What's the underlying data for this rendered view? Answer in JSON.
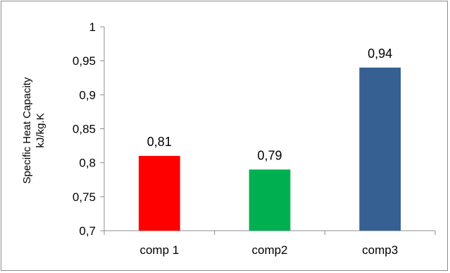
{
  "chart_data": {
    "type": "bar",
    "title": "",
    "xlabel": "",
    "ylabel": [
      "Specific Heat Capacity",
      "kJ/kg.K"
    ],
    "categories": [
      "comp 1",
      "comp2",
      "comp3"
    ],
    "values": [
      0.81,
      0.79,
      0.94
    ],
    "data_labels": [
      "0,81",
      "0,79",
      "0,94"
    ],
    "bar_colors": [
      "#ff0000",
      "#00b050",
      "#376092"
    ],
    "ylim": [
      0.7,
      1
    ],
    "yticks": [
      0.7,
      0.75,
      0.8,
      0.85,
      0.9,
      0.95,
      1
    ],
    "ytick_labels": [
      "0,7",
      "0,75",
      "0,8",
      "0,85",
      "0,9",
      "0,95",
      "1"
    ],
    "grid": false,
    "legend": "none"
  }
}
